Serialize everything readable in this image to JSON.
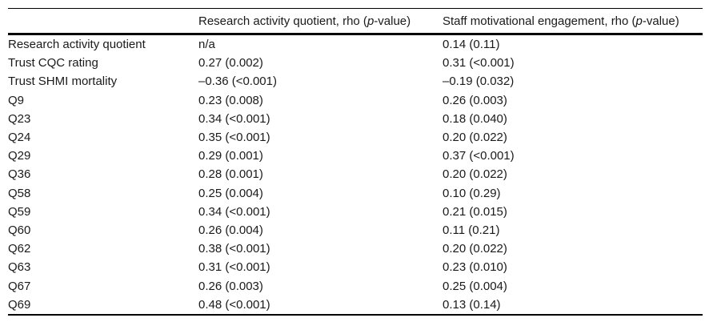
{
  "table": {
    "header": {
      "col1": "",
      "col2": {
        "prefix": "Research activity quotient, rho (",
        "italic": "p",
        "suffix": "-value)"
      },
      "col3": {
        "prefix": "Staff motivational engagement, rho (",
        "italic": "p",
        "suffix": "-value)"
      }
    },
    "rows": [
      {
        "label": "Research activity quotient",
        "raq": "n/a",
        "sme": "0.14 (0.11)"
      },
      {
        "label": "Trust CQC rating",
        "raq": "0.27 (0.002)",
        "sme": "0.31 (<0.001)"
      },
      {
        "label": "Trust SHMI mortality",
        "raq": "–0.36 (<0.001)",
        "sme": "–0.19 (0.032)"
      },
      {
        "label": "Q9",
        "raq": "0.23 (0.008)",
        "sme": "0.26 (0.003)"
      },
      {
        "label": "Q23",
        "raq": "0.34 (<0.001)",
        "sme": "0.18 (0.040)"
      },
      {
        "label": "Q24",
        "raq": "0.35 (<0.001)",
        "sme": "0.20 (0.022)"
      },
      {
        "label": "Q29",
        "raq": "0.29 (0.001)",
        "sme": "0.37 (<0.001)"
      },
      {
        "label": "Q36",
        "raq": "0.28 (0.001)",
        "sme": "0.20 (0.022)"
      },
      {
        "label": "Q58",
        "raq": "0.25 (0.004)",
        "sme": "0.10 (0.29)"
      },
      {
        "label": "Q59",
        "raq": "0.34 (<0.001)",
        "sme": "0.21 (0.015)"
      },
      {
        "label": "Q60",
        "raq": "0.26 (0.004)",
        "sme": "0.11 (0.21)"
      },
      {
        "label": "Q62",
        "raq": "0.38 (<0.001)",
        "sme": "0.20 (0.022)"
      },
      {
        "label": "Q63",
        "raq": "0.31 (<0.001)",
        "sme": "0.23 (0.010)"
      },
      {
        "label": "Q67",
        "raq": "0.26 (0.003)",
        "sme": "0.25 (0.004)"
      },
      {
        "label": "Q69",
        "raq": "0.48 (<0.001)",
        "sme": "0.13 (0.14)"
      }
    ]
  },
  "colors": {
    "text": "#1a1a1a",
    "rule": "#000000",
    "background": "#ffffff"
  },
  "chart_data": {
    "type": "table",
    "title": "",
    "columns": [
      "",
      "Research activity quotient, rho (p-value)",
      "Staff motivational engagement, rho (p-value)"
    ],
    "rows": [
      [
        "Research activity quotient",
        "n/a",
        "0.14 (0.11)"
      ],
      [
        "Trust CQC rating",
        "0.27 (0.002)",
        "0.31 (<0.001)"
      ],
      [
        "Trust SHMI mortality",
        "–0.36 (<0.001)",
        "–0.19 (0.032)"
      ],
      [
        "Q9",
        "0.23 (0.008)",
        "0.26 (0.003)"
      ],
      [
        "Q23",
        "0.34 (<0.001)",
        "0.18 (0.040)"
      ],
      [
        "Q24",
        "0.35 (<0.001)",
        "0.20 (0.022)"
      ],
      [
        "Q29",
        "0.29 (0.001)",
        "0.37 (<0.001)"
      ],
      [
        "Q36",
        "0.28 (0.001)",
        "0.20 (0.022)"
      ],
      [
        "Q58",
        "0.25 (0.004)",
        "0.10 (0.29)"
      ],
      [
        "Q59",
        "0.34 (<0.001)",
        "0.21 (0.015)"
      ],
      [
        "Q60",
        "0.26 (0.004)",
        "0.11 (0.21)"
      ],
      [
        "Q62",
        "0.38 (<0.001)",
        "0.20 (0.022)"
      ],
      [
        "Q63",
        "0.31 (<0.001)",
        "0.23 (0.010)"
      ],
      [
        "Q67",
        "0.26 (0.003)",
        "0.25 (0.004)"
      ],
      [
        "Q69",
        "0.48 (<0.001)",
        "0.13 (0.14)"
      ]
    ]
  }
}
